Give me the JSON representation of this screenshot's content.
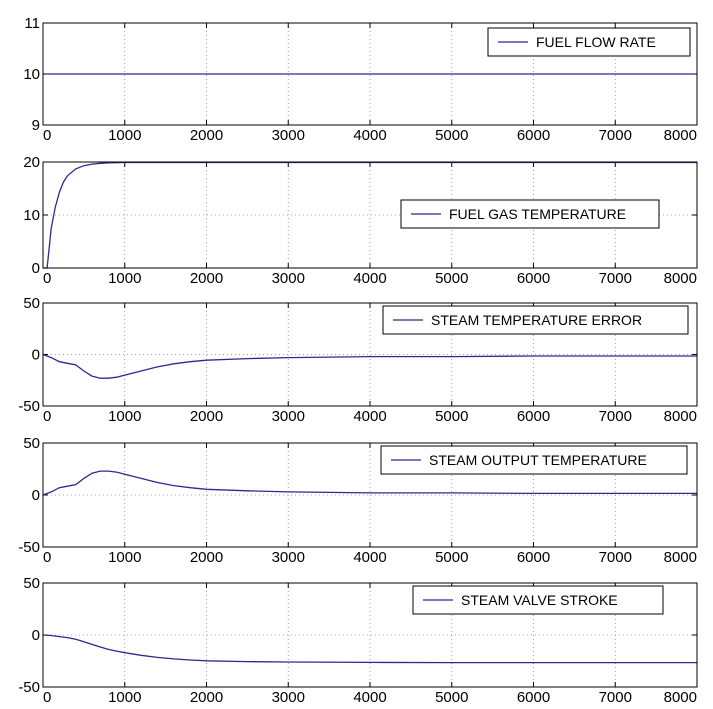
{
  "chart_data": [
    {
      "type": "line",
      "legend": "FUEL FLOW RATE",
      "legend_placement": "top-right",
      "xlim": [
        0,
        8000
      ],
      "ylim": [
        9,
        11
      ],
      "xticks": [
        0,
        1000,
        2000,
        3000,
        4000,
        5000,
        6000,
        7000,
        8000
      ],
      "yticks": [
        9,
        10,
        11
      ],
      "grid": true,
      "color": "#2b2b8f",
      "x": [
        0,
        8000
      ],
      "y": [
        10,
        10
      ]
    },
    {
      "type": "line",
      "legend": "FUEL GAS TEMPERATURE",
      "legend_placement": "right",
      "xlim": [
        0,
        8000
      ],
      "ylim": [
        0,
        20
      ],
      "xticks": [
        0,
        1000,
        2000,
        3000,
        4000,
        5000,
        6000,
        7000,
        8000
      ],
      "yticks": [
        0,
        10,
        20
      ],
      "grid": true,
      "color": "#2b2b8f",
      "x": [
        0,
        50,
        100,
        150,
        200,
        250,
        300,
        400,
        500,
        600,
        700,
        800,
        1000,
        2000,
        4000,
        8000
      ],
      "y": [
        0,
        0,
        7.5,
        11.5,
        14.3,
        16.2,
        17.4,
        18.7,
        19.3,
        19.6,
        19.75,
        19.85,
        19.9,
        19.9,
        19.9,
        19.9
      ]
    },
    {
      "type": "line",
      "legend": "STEAM TEMPERATURE ERROR",
      "legend_placement": "top-right",
      "xlim": [
        0,
        8000
      ],
      "ylim": [
        -50,
        50
      ],
      "xticks": [
        0,
        1000,
        2000,
        3000,
        4000,
        5000,
        6000,
        7000,
        8000
      ],
      "yticks": [
        -50,
        0,
        50
      ],
      "grid": true,
      "color": "#2b2b8f",
      "x": [
        0,
        100,
        200,
        300,
        400,
        500,
        600,
        700,
        800,
        900,
        1000,
        1200,
        1400,
        1600,
        1800,
        2000,
        2500,
        3000,
        3500,
        4000,
        5000,
        6000,
        7000,
        8000
      ],
      "y": [
        0,
        -3,
        -7,
        -8.5,
        -10,
        -16,
        -21,
        -23,
        -23,
        -22,
        -20,
        -16,
        -12,
        -9,
        -7,
        -5.5,
        -4,
        -3,
        -2.5,
        -2,
        -2,
        -1.5,
        -1.5,
        -1.5
      ]
    },
    {
      "type": "line",
      "legend": "STEAM OUTPUT TEMPERATURE",
      "legend_placement": "top-right",
      "xlim": [
        0,
        8000
      ],
      "ylim": [
        -50,
        50
      ],
      "xticks": [
        0,
        1000,
        2000,
        3000,
        4000,
        5000,
        6000,
        7000,
        8000
      ],
      "yticks": [
        -50,
        0,
        50
      ],
      "grid": true,
      "color": "#2b2b8f",
      "x": [
        0,
        100,
        200,
        300,
        400,
        500,
        600,
        700,
        800,
        900,
        1000,
        1200,
        1400,
        1600,
        1800,
        2000,
        2500,
        3000,
        3500,
        4000,
        5000,
        6000,
        7000,
        8000
      ],
      "y": [
        0,
        3,
        7,
        8.5,
        10,
        16,
        21,
        23,
        23,
        22,
        20,
        16,
        12,
        9,
        7,
        5.5,
        4,
        3,
        2.5,
        2,
        2,
        1.5,
        1.5,
        1.5
      ]
    },
    {
      "type": "line",
      "legend": "STEAM VALVE STROKE",
      "legend_placement": "top-right",
      "xlim": [
        0,
        8000
      ],
      "ylim": [
        -50,
        50
      ],
      "xticks": [
        0,
        1000,
        2000,
        3000,
        4000,
        5000,
        6000,
        7000,
        8000
      ],
      "yticks": [
        -50,
        0,
        50
      ],
      "grid": true,
      "color": "#2b2b8f",
      "x": [
        0,
        100,
        200,
        300,
        400,
        500,
        600,
        700,
        800,
        900,
        1000,
        1200,
        1400,
        1600,
        1800,
        2000,
        2500,
        3000,
        4000,
        5000,
        6000,
        7000,
        8000
      ],
      "y": [
        0,
        -0.5,
        -1.5,
        -2.5,
        -4,
        -6.5,
        -9,
        -11.5,
        -13.8,
        -15.5,
        -17,
        -19.5,
        -21.5,
        -23,
        -24,
        -24.8,
        -25.6,
        -26,
        -26.3,
        -26.5,
        -26.5,
        -26.5,
        -26.5
      ]
    }
  ]
}
